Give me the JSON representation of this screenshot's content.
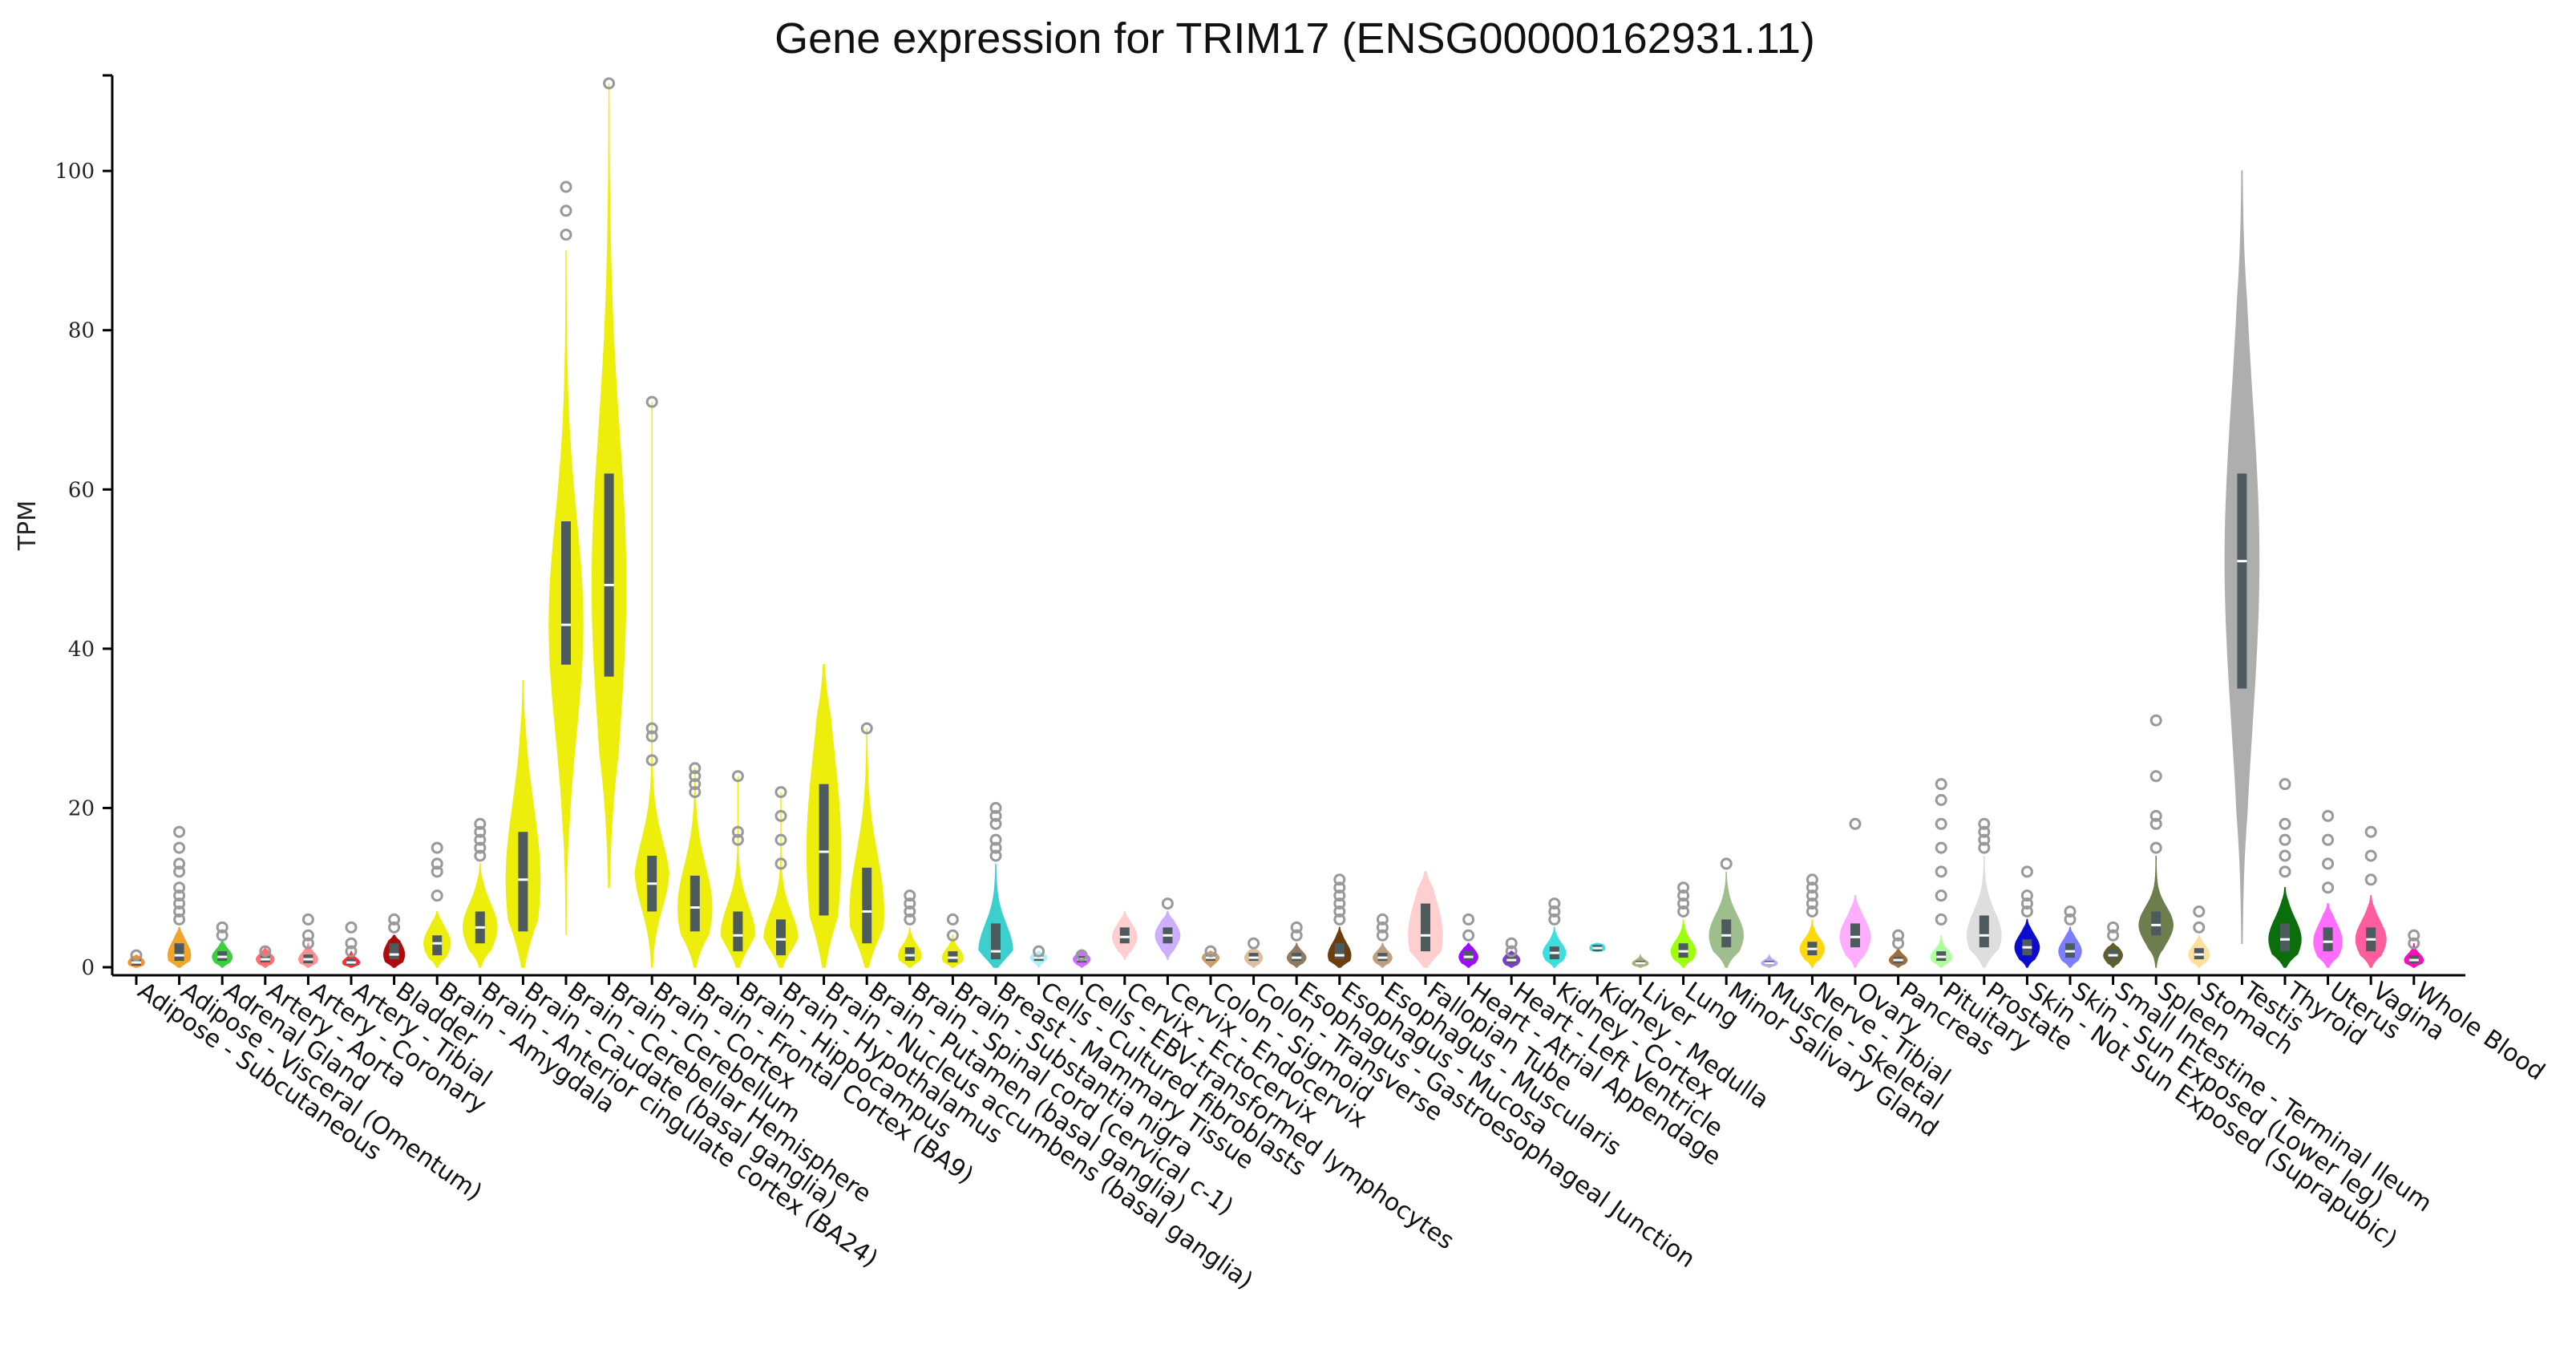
{
  "chart_data": {
    "type": "violin",
    "title": "Gene expression for TRIM17 (ENSG00000162931.11)",
    "xlabel": "",
    "ylabel": "TPM",
    "ylim": [
      0,
      112
    ],
    "yticks": [
      0,
      20,
      40,
      60,
      80,
      100
    ],
    "grid": false,
    "legend": "none",
    "series": [
      {
        "name": "Adipose - Subcutaneous",
        "color": "#f58d22",
        "q1": 0.2,
        "median": 0.6,
        "q3": 1.0,
        "min": 0,
        "max": 1.5,
        "outliers": [
          1.5
        ]
      },
      {
        "name": "Adipose - Visceral (Omentum)",
        "color": "#f0a020",
        "q1": 0.8,
        "median": 1.5,
        "q3": 3.0,
        "min": 0,
        "max": 5,
        "outliers": [
          6,
          7,
          8,
          9,
          10,
          12,
          13,
          15,
          17
        ]
      },
      {
        "name": "Adrenal Gland",
        "color": "#33cc33",
        "q1": 0.8,
        "median": 1.3,
        "q3": 2.0,
        "min": 0,
        "max": 3.5,
        "outliers": [
          4,
          5
        ]
      },
      {
        "name": "Artery - Aorta",
        "color": "#ff6666",
        "q1": 0.6,
        "median": 1.0,
        "q3": 1.5,
        "min": 0,
        "max": 2.5,
        "outliers": [
          2
        ]
      },
      {
        "name": "Artery - Coronary",
        "color": "#ff8888",
        "q1": 0.5,
        "median": 1.0,
        "q3": 1.6,
        "min": 0,
        "max": 3,
        "outliers": [
          3,
          4,
          6
        ]
      },
      {
        "name": "Artery - Tibial",
        "color": "#ff2222",
        "q1": 0.3,
        "median": 0.6,
        "q3": 1.0,
        "min": 0,
        "max": 2,
        "outliers": [
          2,
          3,
          5
        ]
      },
      {
        "name": "Bladder",
        "color": "#aa0000",
        "q1": 1.0,
        "median": 1.6,
        "q3": 3.0,
        "min": 0,
        "max": 4,
        "outliers": [
          5,
          6
        ]
      },
      {
        "name": "Brain - Amygdala",
        "color": "#eeee00",
        "q1": 1.5,
        "median": 3.0,
        "q3": 4.0,
        "min": 0,
        "max": 7,
        "outliers": [
          9,
          12,
          13,
          15
        ]
      },
      {
        "name": "Brain - Anterior cingulate cortex (BA24)",
        "color": "#eeee00",
        "q1": 3.0,
        "median": 5.0,
        "q3": 7.0,
        "min": 0,
        "max": 13,
        "outliers": [
          14,
          15,
          16,
          17,
          18
        ]
      },
      {
        "name": "Brain - Caudate (basal ganglia)",
        "color": "#eeee00",
        "q1": 4.5,
        "median": 11.0,
        "q3": 17.0,
        "min": 0,
        "max": 36,
        "outliers": []
      },
      {
        "name": "Brain - Cerebellar Hemisphere",
        "color": "#eeee00",
        "q1": 38.0,
        "median": 43.0,
        "q3": 56.0,
        "min": 4,
        "max": 90,
        "outliers": [
          92,
          95,
          98
        ]
      },
      {
        "name": "Brain - Cerebellum",
        "color": "#eeee00",
        "q1": 36.5,
        "median": 48.0,
        "q3": 62.0,
        "min": 10,
        "max": 111,
        "outliers": [
          111
        ]
      },
      {
        "name": "Brain - Cortex",
        "color": "#eeee00",
        "q1": 7.0,
        "median": 10.5,
        "q3": 14.0,
        "min": 0,
        "max": 71,
        "outliers": [
          26,
          29,
          30,
          71
        ]
      },
      {
        "name": "Brain - Frontal Cortex (BA9)",
        "color": "#eeee00",
        "q1": 4.5,
        "median": 7.5,
        "q3": 11.5,
        "min": 0,
        "max": 25,
        "outliers": [
          22,
          23,
          24,
          25
        ]
      },
      {
        "name": "Brain - Hippocampus",
        "color": "#eeee00",
        "q1": 2.0,
        "median": 4.0,
        "q3": 7.0,
        "min": 0,
        "max": 24,
        "outliers": [
          16,
          17,
          24
        ]
      },
      {
        "name": "Brain - Hypothalamus",
        "color": "#eeee00",
        "q1": 1.5,
        "median": 3.5,
        "q3": 6.0,
        "min": 0,
        "max": 22,
        "outliers": [
          13,
          16,
          19,
          22
        ]
      },
      {
        "name": "Brain - Nucleus accumbens (basal ganglia)",
        "color": "#eeee00",
        "q1": 6.5,
        "median": 14.5,
        "q3": 23.0,
        "min": 0,
        "max": 38,
        "outliers": []
      },
      {
        "name": "Brain - Putamen (basal ganglia)",
        "color": "#eeee00",
        "q1": 3.0,
        "median": 7.0,
        "q3": 12.5,
        "min": 0,
        "max": 30,
        "outliers": [
          30
        ]
      },
      {
        "name": "Brain - Spinal cord (cervical c-1)",
        "color": "#eeee00",
        "q1": 0.8,
        "median": 1.5,
        "q3": 2.5,
        "min": 0,
        "max": 5,
        "outliers": [
          6,
          7,
          8,
          9
        ]
      },
      {
        "name": "Brain - Substantia nigra",
        "color": "#eeee00",
        "q1": 0.6,
        "median": 1.2,
        "q3": 2.0,
        "min": 0,
        "max": 4,
        "outliers": [
          4,
          6
        ]
      },
      {
        "name": "Breast - Mammary Tissue",
        "color": "#33cccc",
        "q1": 1.0,
        "median": 2.0,
        "q3": 5.5,
        "min": 0,
        "max": 13,
        "outliers": [
          14,
          15,
          16,
          18,
          19,
          20
        ]
      },
      {
        "name": "Cells - Cultured fibroblasts",
        "color": "#aaeeff",
        "q1": 0.8,
        "median": 1.2,
        "q3": 1.5,
        "min": 0,
        "max": 2,
        "outliers": [
          2
        ]
      },
      {
        "name": "Cells - EBV-transformed lymphocytes",
        "color": "#cc66ff",
        "q1": 0.6,
        "median": 1.0,
        "q3": 1.4,
        "min": 0,
        "max": 2,
        "outliers": [
          1.5
        ]
      },
      {
        "name": "Cervix - Ectocervix",
        "color": "#ffcccc",
        "q1": 3.0,
        "median": 3.8,
        "q3": 5.0,
        "min": 1,
        "max": 7,
        "outliers": []
      },
      {
        "name": "Cervix - Endocervix",
        "color": "#ccaaff",
        "q1": 3.0,
        "median": 4.0,
        "q3": 5.0,
        "min": 1,
        "max": 7,
        "outliers": [
          8
        ]
      },
      {
        "name": "Colon - Sigmoid",
        "color": "#cc9966",
        "q1": 0.8,
        "median": 1.2,
        "q3": 1.6,
        "min": 0,
        "max": 2,
        "outliers": [
          2
        ]
      },
      {
        "name": "Colon - Transverse",
        "color": "#ddbb99",
        "q1": 0.8,
        "median": 1.2,
        "q3": 1.8,
        "min": 0,
        "max": 2.5,
        "outliers": [
          3
        ]
      },
      {
        "name": "Esophagus - Gastroesophageal Junction",
        "color": "#8b7355",
        "q1": 0.8,
        "median": 1.2,
        "q3": 1.8,
        "min": 0,
        "max": 3,
        "outliers": [
          4,
          5
        ]
      },
      {
        "name": "Esophagus - Mucosa",
        "color": "#663300",
        "q1": 1.0,
        "median": 1.5,
        "q3": 3.0,
        "min": 0,
        "max": 5,
        "outliers": [
          6,
          7,
          8,
          9,
          10,
          11
        ]
      },
      {
        "name": "Esophagus - Muscularis",
        "color": "#bb9977",
        "q1": 0.8,
        "median": 1.2,
        "q3": 1.8,
        "min": 0,
        "max": 3,
        "outliers": [
          4,
          5,
          6
        ]
      },
      {
        "name": "Fallopian Tube",
        "color": "#ffcccc",
        "q1": 2.0,
        "median": 4.0,
        "q3": 8.0,
        "min": 0,
        "max": 12,
        "outliers": []
      },
      {
        "name": "Heart - Atrial Appendage",
        "color": "#9900ff",
        "q1": 0.8,
        "median": 1.3,
        "q3": 2.0,
        "min": 0,
        "max": 3,
        "outliers": [
          4,
          6
        ]
      },
      {
        "name": "Heart - Left Ventricle",
        "color": "#7733cc",
        "q1": 0.5,
        "median": 0.9,
        "q3": 1.4,
        "min": 0,
        "max": 2,
        "outliers": [
          2,
          3
        ]
      },
      {
        "name": "Kidney - Cortex",
        "color": "#33dddd",
        "q1": 1.0,
        "median": 1.8,
        "q3": 2.6,
        "min": 0,
        "max": 5,
        "outliers": [
          6,
          7,
          8
        ]
      },
      {
        "name": "Kidney - Medulla",
        "color": "#33dddd",
        "q1": 2.0,
        "median": 2.4,
        "q3": 2.8,
        "min": 2,
        "max": 3,
        "outliers": []
      },
      {
        "name": "Liver",
        "color": "#aaaa77",
        "q1": 0.3,
        "median": 0.5,
        "q3": 0.8,
        "min": 0,
        "max": 1.5,
        "outliers": []
      },
      {
        "name": "Lung",
        "color": "#99ff00",
        "q1": 1.2,
        "median": 2.0,
        "q3": 3.0,
        "min": 0,
        "max": 6,
        "outliers": [
          7,
          8,
          9,
          10
        ]
      },
      {
        "name": "Minor Salivary Gland",
        "color": "#99bb88",
        "q1": 2.5,
        "median": 4.0,
        "q3": 6.0,
        "min": 0,
        "max": 12,
        "outliers": [
          13
        ]
      },
      {
        "name": "Muscle - Skeletal",
        "color": "#aaaaff",
        "q1": 0.3,
        "median": 0.5,
        "q3": 0.8,
        "min": 0,
        "max": 1.5,
        "outliers": []
      },
      {
        "name": "Nerve - Tibial",
        "color": "#ffd700",
        "q1": 1.5,
        "median": 2.3,
        "q3": 3.2,
        "min": 0,
        "max": 6,
        "outliers": [
          7,
          8,
          9,
          10,
          11
        ]
      },
      {
        "name": "Ovary",
        "color": "#ffaaff",
        "q1": 2.5,
        "median": 3.8,
        "q3": 5.5,
        "min": 0,
        "max": 9,
        "outliers": [
          18
        ]
      },
      {
        "name": "Pancreas",
        "color": "#996633",
        "q1": 0.5,
        "median": 0.9,
        "q3": 1.3,
        "min": 0,
        "max": 2.5,
        "outliers": [
          3,
          4
        ]
      },
      {
        "name": "Pituitary",
        "color": "#aaff99",
        "q1": 0.8,
        "median": 1.3,
        "q3": 2.0,
        "min": 0,
        "max": 4,
        "outliers": [
          6,
          9,
          12,
          15,
          18,
          21,
          23
        ]
      },
      {
        "name": "Prostate",
        "color": "#dddddd",
        "q1": 2.5,
        "median": 4.0,
        "q3": 6.5,
        "min": 0,
        "max": 14,
        "outliers": [
          15,
          16,
          17,
          18
        ]
      },
      {
        "name": "Skin - Not Sun Exposed (Suprapubic)",
        "color": "#0000cc",
        "q1": 1.5,
        "median": 2.5,
        "q3": 3.5,
        "min": 0,
        "max": 6,
        "outliers": [
          7,
          8,
          9,
          12
        ]
      },
      {
        "name": "Skin - Sun Exposed (Lower leg)",
        "color": "#7777ff",
        "q1": 1.2,
        "median": 2.0,
        "q3": 3.0,
        "min": 0,
        "max": 5,
        "outliers": [
          6,
          7
        ]
      },
      {
        "name": "Small Intestine - Terminal Ileum",
        "color": "#555522",
        "q1": 1.0,
        "median": 1.5,
        "q3": 2.2,
        "min": 0,
        "max": 3,
        "outliers": [
          4,
          5
        ]
      },
      {
        "name": "Spleen",
        "color": "#667744",
        "q1": 4.0,
        "median": 5.3,
        "q3": 7.0,
        "min": 0,
        "max": 14,
        "outliers": [
          15,
          18,
          19,
          24,
          31
        ]
      },
      {
        "name": "Stomach",
        "color": "#ffdd99",
        "q1": 1.0,
        "median": 1.6,
        "q3": 2.4,
        "min": 0,
        "max": 4,
        "outliers": [
          5,
          7
        ]
      },
      {
        "name": "Testis",
        "color": "#aaaaaa",
        "q1": 35.0,
        "median": 51.0,
        "q3": 62.0,
        "min": 3,
        "max": 100,
        "outliers": []
      },
      {
        "name": "Thyroid",
        "color": "#006600",
        "q1": 2.0,
        "median": 3.5,
        "q3": 5.5,
        "min": 0,
        "max": 10,
        "outliers": [
          12,
          14,
          16,
          18,
          23
        ]
      },
      {
        "name": "Uterus",
        "color": "#ff66ff",
        "q1": 2.0,
        "median": 3.2,
        "q3": 5.0,
        "min": 0,
        "max": 8,
        "outliers": [
          10,
          13,
          16,
          19
        ]
      },
      {
        "name": "Vagina",
        "color": "#ff5599",
        "q1": 2.0,
        "median": 3.5,
        "q3": 5.0,
        "min": 0,
        "max": 9,
        "outliers": [
          11,
          14,
          17
        ]
      },
      {
        "name": "Whole Blood",
        "color": "#ff00bb",
        "q1": 0.5,
        "median": 0.9,
        "q3": 1.5,
        "min": 0,
        "max": 3,
        "outliers": [
          3,
          4
        ]
      }
    ]
  }
}
